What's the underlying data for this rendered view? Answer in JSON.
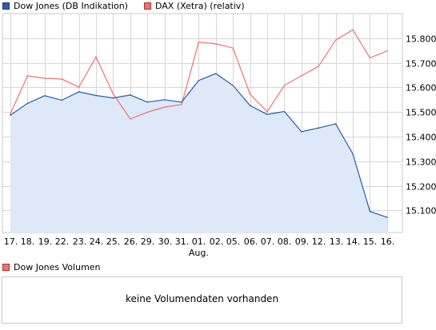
{
  "legend": {
    "series1": "Dow Jones (DB Indikation)",
    "series2": "DAX (Xetra) (relativ)"
  },
  "colors": {
    "dow": "#2b5ca8",
    "dow_fill": "#dde8f8",
    "dax": "#f07070",
    "grid": "#d6d6d6"
  },
  "chart_data": {
    "type": "line",
    "x": [
      "17.",
      "18.",
      "19.",
      "22.",
      "23.",
      "24.",
      "25.",
      "26.",
      "29.",
      "30.",
      "31.",
      "01.",
      "02.",
      "05.",
      "06.",
      "07.",
      "08.",
      "09.",
      "12.",
      "13.",
      "14.",
      "15.",
      "16."
    ],
    "month_label": "Aug.",
    "ylim": [
      15010,
      15900
    ],
    "yticks": [
      15100,
      15200,
      15300,
      15400,
      15500,
      15600,
      15700,
      15800
    ],
    "ytick_labels": [
      "15.100",
      "15.200",
      "15.300",
      "15.400",
      "15.500",
      "15.600",
      "15.700",
      "15.800"
    ],
    "series": [
      {
        "name": "Dow Jones (DB Indikation)",
        "values": [
          15487,
          15535,
          15566,
          15548,
          15582,
          15567,
          15557,
          15569,
          15540,
          15550,
          15540,
          15628,
          15656,
          15608,
          15526,
          15490,
          15502,
          15420,
          15435,
          15452,
          15330,
          15096,
          15072
        ]
      },
      {
        "name": "DAX (Xetra) (relativ)",
        "values": [
          15493,
          15647,
          15637,
          15634,
          15601,
          15724,
          15574,
          15472,
          15499,
          15520,
          15530,
          15784,
          15777,
          15760,
          15572,
          15501,
          15608,
          15647,
          15686,
          15792,
          15834,
          15720,
          15748
        ]
      }
    ]
  },
  "volume": {
    "legend": "Dow Jones Volumen",
    "message": "keine Volumendaten vorhanden"
  }
}
